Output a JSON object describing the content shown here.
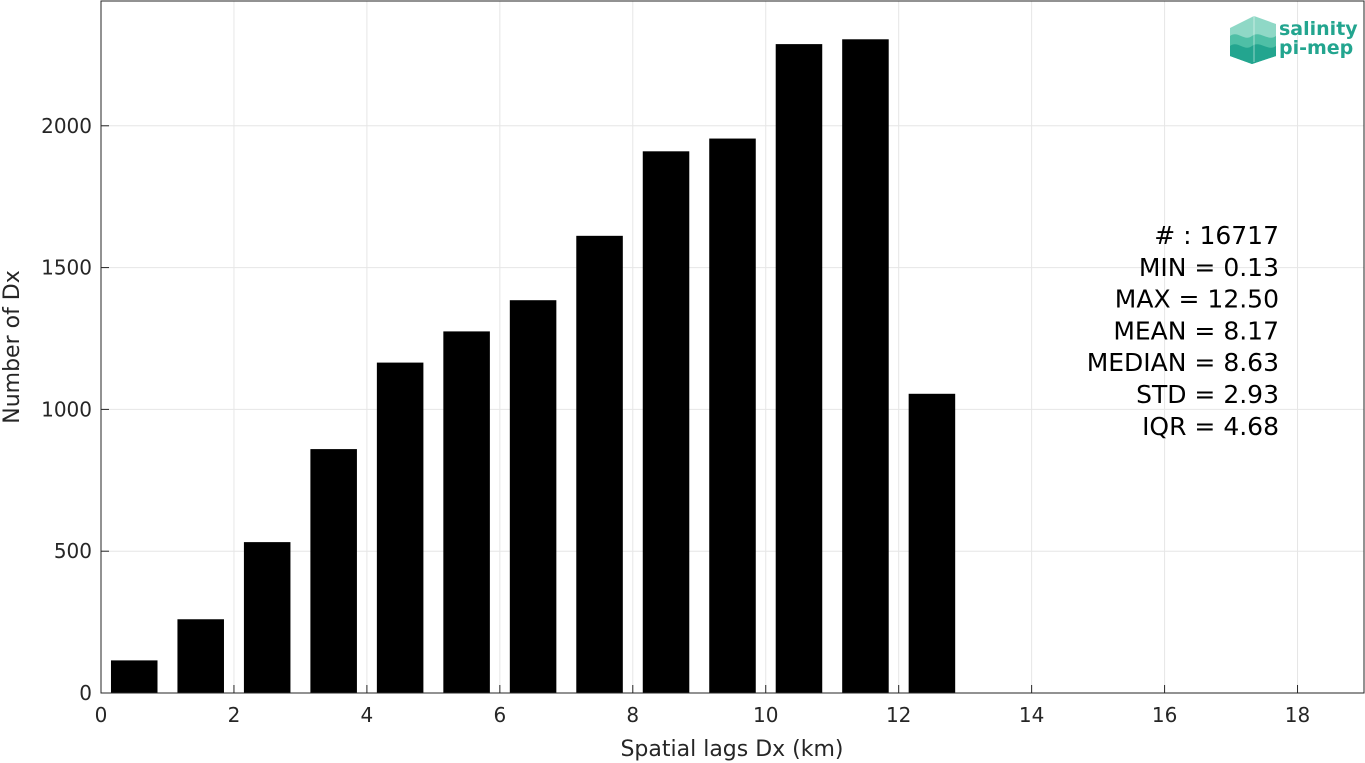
{
  "chart_data": {
    "type": "bar",
    "x": [
      0.5,
      1.5,
      2.5,
      3.5,
      4.5,
      5.5,
      6.5,
      7.5,
      8.5,
      9.5,
      10.5,
      11.5,
      12.5
    ],
    "values": [
      115,
      260,
      532,
      860,
      1165,
      1275,
      1385,
      1612,
      1910,
      1955,
      2288,
      2305,
      1055
    ],
    "xlabel": "Spatial lags Dx (km)",
    "ylabel": "Number of Dx",
    "xlim": [
      0,
      19
    ],
    "ylim": [
      0,
      2440
    ],
    "xticks": [
      0,
      2,
      4,
      6,
      8,
      10,
      12,
      14,
      16,
      18
    ],
    "yticks": [
      0,
      500,
      1000,
      1500,
      2000
    ],
    "grid": true,
    "bar_color": "#000000",
    "stats": [
      "# : 16717",
      "MIN = 0.13",
      "MAX =  12.50",
      "MEAN = 8.17",
      "MEDIAN = 8.63",
      "STD = 2.93",
      "IQR = 4.68"
    ]
  },
  "logo": {
    "line1": "salinity",
    "line2": "pi-mep",
    "color": "#23a58f"
  }
}
